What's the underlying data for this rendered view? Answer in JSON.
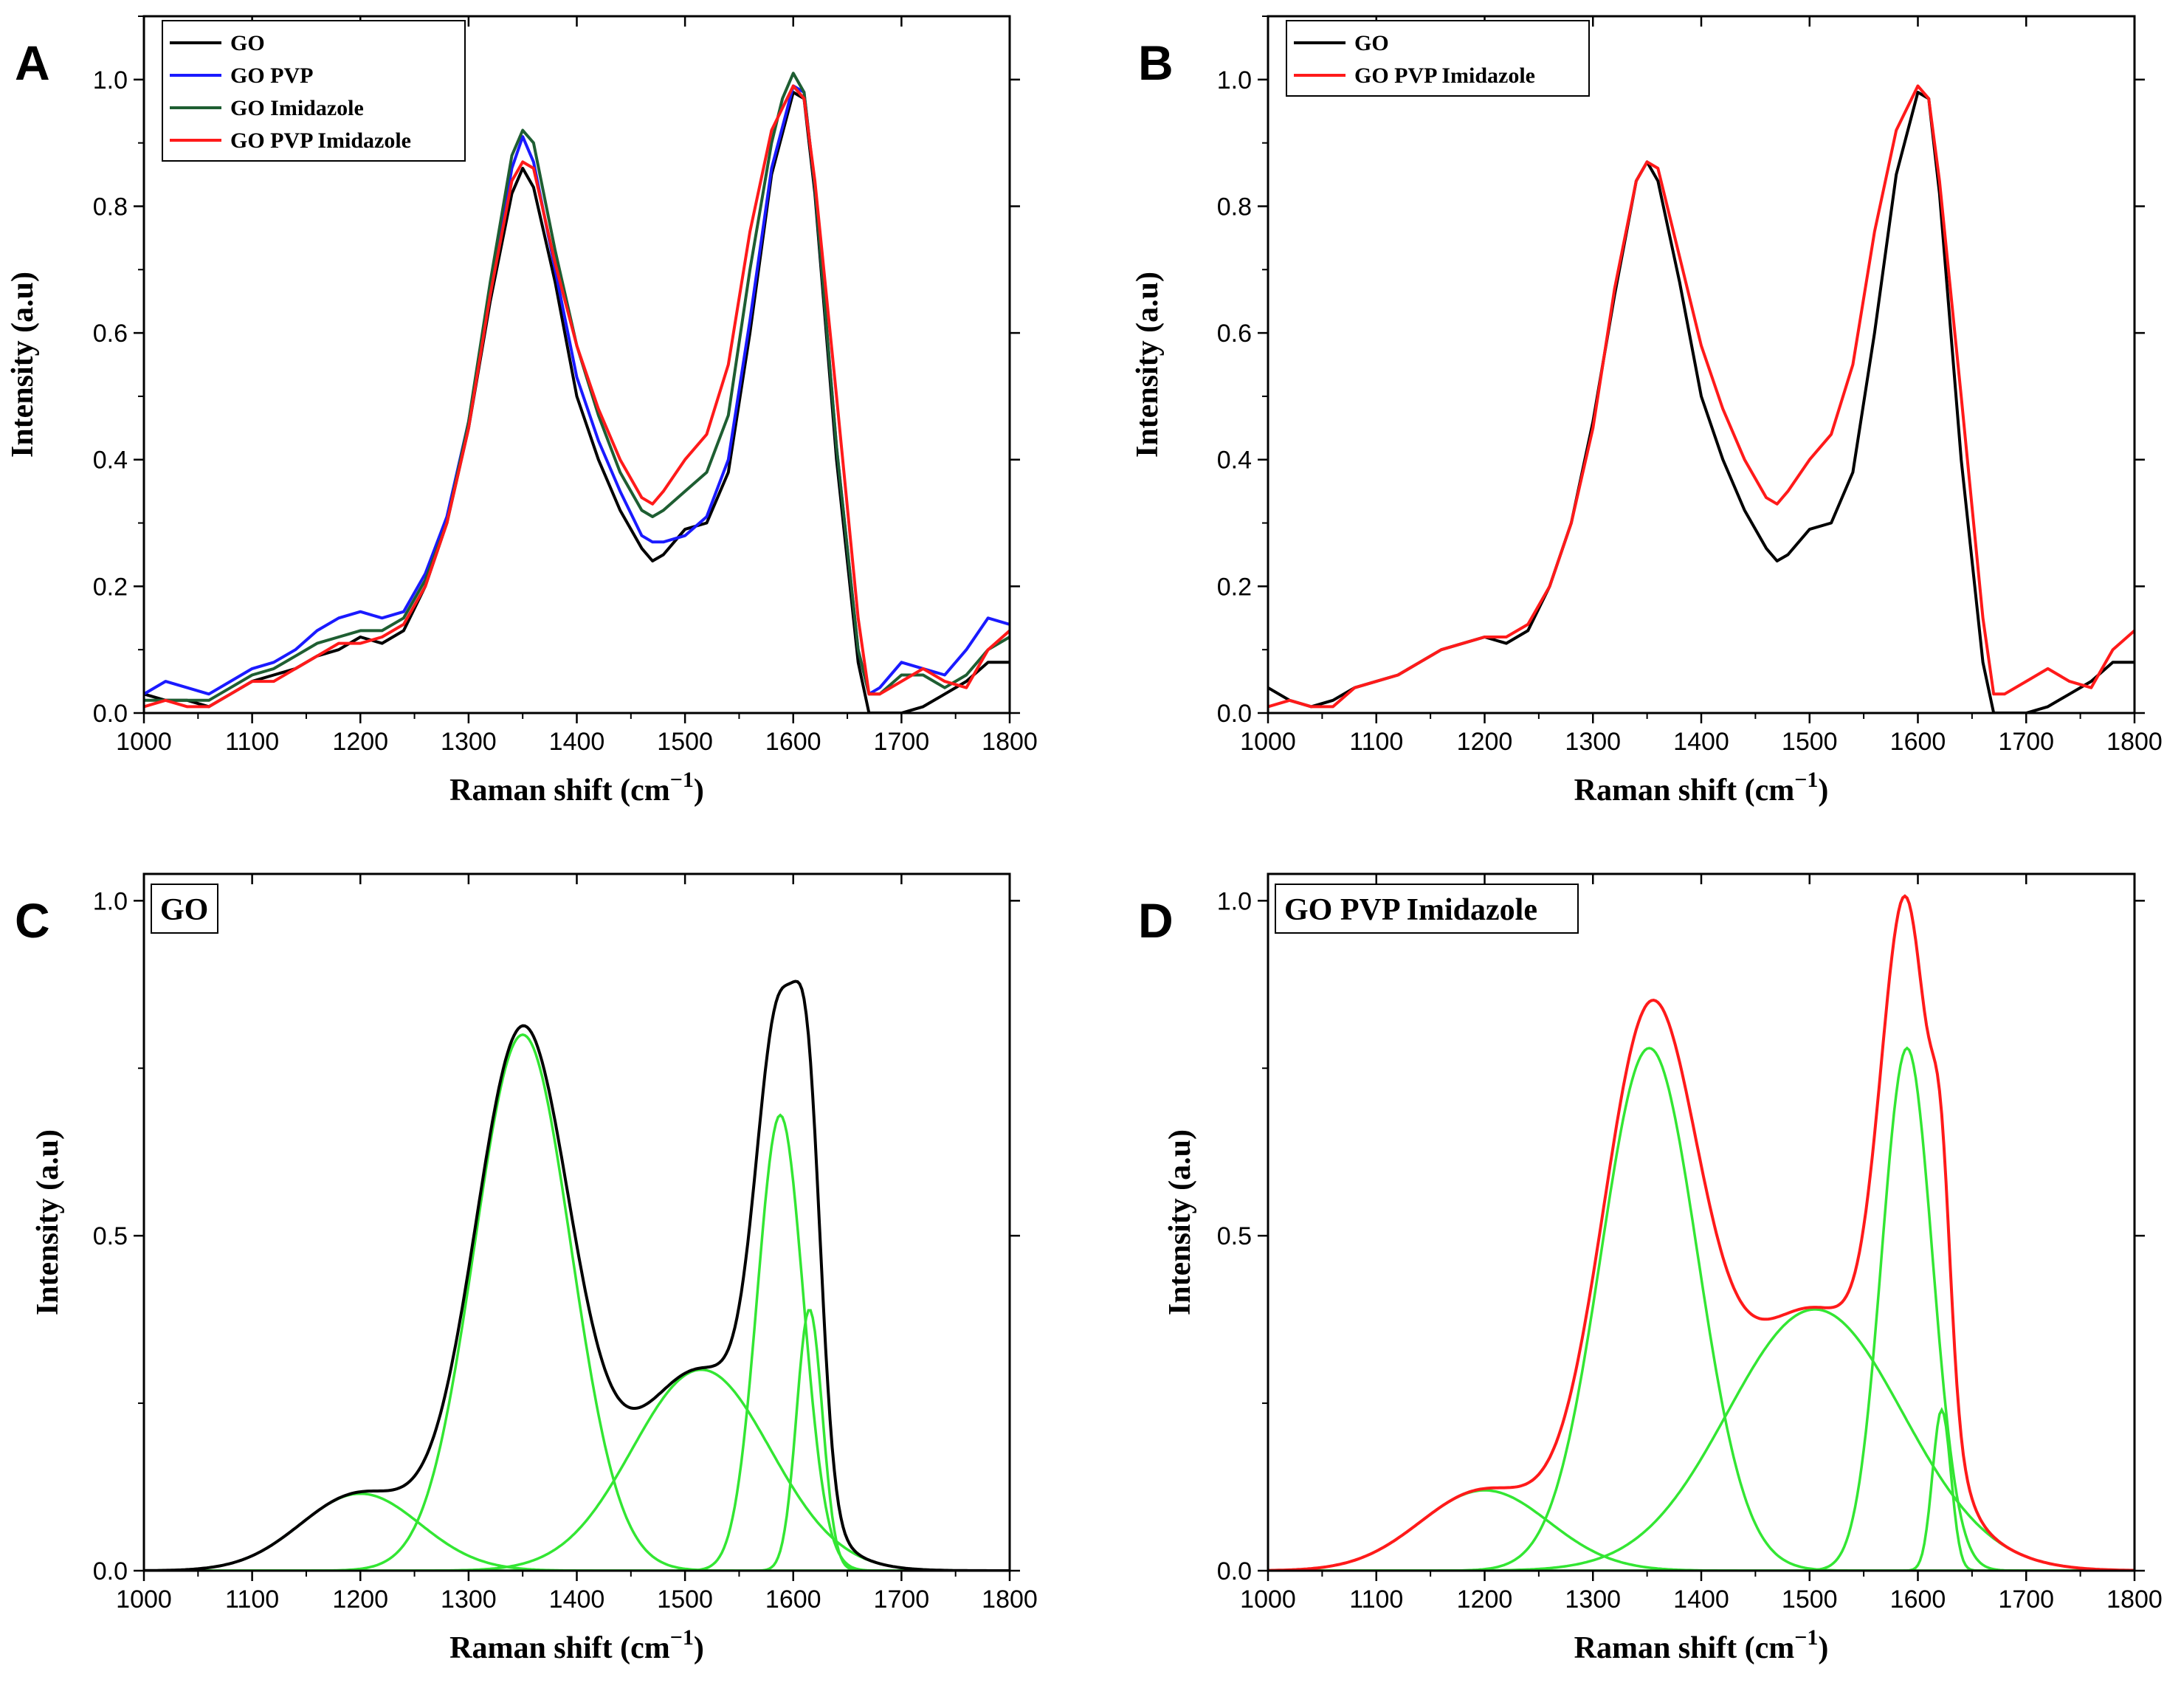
{
  "figure": {
    "colors": {
      "GO": "#000000",
      "GO PVP": "#1a1aff",
      "GO Imidazole": "#1e5e32",
      "GO PVP Imidazole": "#ff1a1a",
      "fit": "#33e633"
    }
  },
  "chart_data": [
    {
      "panel": "A",
      "type": "line",
      "xlabel": "Raman shift (cm",
      "xlabel_sup": "−1",
      "xlabel_close": ")",
      "ylabel": "Intensity (a.u)",
      "xlim": [
        1000,
        1800
      ],
      "ylim": [
        0,
        1.1
      ],
      "xticks": [
        "1000",
        "1100",
        "1200",
        "1300",
        "1400",
        "1500",
        "1600",
        "1700",
        "1800"
      ],
      "yticks": [
        "0.0",
        "0.2",
        "0.4",
        "0.6",
        "0.8",
        "1.0"
      ],
      "legend": [
        "GO",
        "GO PVP",
        "GO Imidazole",
        "GO PVP Imidazole"
      ],
      "series": [
        {
          "name": "GO",
          "color": "#000000",
          "x": [
            1000,
            1020,
            1040,
            1060,
            1080,
            1100,
            1120,
            1140,
            1160,
            1180,
            1200,
            1220,
            1240,
            1260,
            1280,
            1300,
            1320,
            1340,
            1350,
            1360,
            1380,
            1400,
            1420,
            1440,
            1460,
            1470,
            1480,
            1500,
            1520,
            1540,
            1560,
            1580,
            1600,
            1610,
            1620,
            1640,
            1660,
            1670,
            1680,
            1700,
            1720,
            1740,
            1760,
            1780,
            1800
          ],
          "y": [
            0.03,
            0.02,
            0.02,
            0.01,
            0.03,
            0.05,
            0.06,
            0.07,
            0.09,
            0.1,
            0.12,
            0.11,
            0.13,
            0.2,
            0.3,
            0.45,
            0.65,
            0.82,
            0.86,
            0.83,
            0.68,
            0.5,
            0.4,
            0.32,
            0.26,
            0.24,
            0.25,
            0.29,
            0.3,
            0.38,
            0.6,
            0.85,
            0.98,
            0.97,
            0.82,
            0.4,
            0.08,
            0.0,
            0.0,
            0.0,
            0.01,
            0.03,
            0.05,
            0.08,
            0.08
          ]
        },
        {
          "name": "GO PVP",
          "color": "#1a1aff",
          "x": [
            1000,
            1020,
            1040,
            1060,
            1080,
            1100,
            1120,
            1140,
            1160,
            1180,
            1200,
            1220,
            1240,
            1260,
            1280,
            1300,
            1320,
            1340,
            1350,
            1360,
            1380,
            1400,
            1420,
            1440,
            1460,
            1470,
            1480,
            1500,
            1520,
            1540,
            1560,
            1580,
            1600,
            1610,
            1620,
            1640,
            1660,
            1670,
            1680,
            1700,
            1720,
            1740,
            1760,
            1780,
            1800
          ],
          "y": [
            0.03,
            0.05,
            0.04,
            0.03,
            0.05,
            0.07,
            0.08,
            0.1,
            0.13,
            0.15,
            0.16,
            0.15,
            0.16,
            0.22,
            0.31,
            0.46,
            0.66,
            0.86,
            0.91,
            0.87,
            0.7,
            0.53,
            0.43,
            0.35,
            0.28,
            0.27,
            0.27,
            0.28,
            0.31,
            0.4,
            0.62,
            0.86,
            0.99,
            0.98,
            0.83,
            0.42,
            0.1,
            0.03,
            0.04,
            0.08,
            0.07,
            0.06,
            0.1,
            0.15,
            0.14
          ]
        },
        {
          "name": "GO Imidazole",
          "color": "#1e5e32",
          "x": [
            1000,
            1020,
            1040,
            1060,
            1080,
            1100,
            1120,
            1140,
            1160,
            1180,
            1200,
            1220,
            1240,
            1260,
            1280,
            1300,
            1320,
            1340,
            1350,
            1360,
            1380,
            1400,
            1420,
            1440,
            1460,
            1470,
            1480,
            1500,
            1520,
            1540,
            1560,
            1580,
            1590,
            1600,
            1610,
            1620,
            1640,
            1660,
            1670,
            1680,
            1700,
            1720,
            1740,
            1760,
            1780,
            1800
          ],
          "y": [
            0.02,
            0.02,
            0.02,
            0.02,
            0.04,
            0.06,
            0.07,
            0.09,
            0.11,
            0.12,
            0.13,
            0.13,
            0.15,
            0.21,
            0.3,
            0.46,
            0.68,
            0.88,
            0.92,
            0.9,
            0.73,
            0.58,
            0.47,
            0.38,
            0.32,
            0.31,
            0.32,
            0.35,
            0.38,
            0.47,
            0.7,
            0.9,
            0.97,
            1.01,
            0.98,
            0.83,
            0.42,
            0.1,
            0.03,
            0.03,
            0.06,
            0.06,
            0.04,
            0.06,
            0.1,
            0.12
          ]
        },
        {
          "name": "GO PVP Imidazole",
          "color": "#ff1a1a",
          "x": [
            1000,
            1020,
            1040,
            1060,
            1080,
            1100,
            1120,
            1140,
            1160,
            1180,
            1200,
            1220,
            1240,
            1260,
            1280,
            1300,
            1320,
            1340,
            1350,
            1360,
            1380,
            1400,
            1420,
            1440,
            1460,
            1470,
            1480,
            1500,
            1520,
            1540,
            1560,
            1580,
            1600,
            1610,
            1620,
            1640,
            1660,
            1670,
            1680,
            1700,
            1720,
            1740,
            1760,
            1780,
            1800
          ],
          "y": [
            0.01,
            0.02,
            0.01,
            0.01,
            0.03,
            0.05,
            0.05,
            0.07,
            0.09,
            0.11,
            0.11,
            0.12,
            0.14,
            0.2,
            0.3,
            0.45,
            0.66,
            0.84,
            0.87,
            0.86,
            0.71,
            0.58,
            0.48,
            0.4,
            0.34,
            0.33,
            0.35,
            0.4,
            0.44,
            0.55,
            0.76,
            0.92,
            0.99,
            0.97,
            0.84,
            0.5,
            0.15,
            0.03,
            0.03,
            0.05,
            0.07,
            0.05,
            0.04,
            0.1,
            0.13
          ]
        }
      ]
    },
    {
      "panel": "B",
      "type": "line",
      "xlabel": "Raman shift (cm",
      "xlabel_sup": "−1",
      "xlabel_close": ")",
      "ylabel": "Intensity (a.u)",
      "xlim": [
        1000,
        1800
      ],
      "ylim": [
        0,
        1.1
      ],
      "xticks": [
        "1000",
        "1100",
        "1200",
        "1300",
        "1400",
        "1500",
        "1600",
        "1700",
        "1800"
      ],
      "yticks": [
        "0.0",
        "0.2",
        "0.4",
        "0.6",
        "0.8",
        "1.0"
      ],
      "legend": [
        "GO",
        "GO PVP Imidazole"
      ],
      "series": [
        {
          "name": "GO",
          "color": "#000000",
          "x": [
            1000,
            1020,
            1040,
            1060,
            1080,
            1100,
            1120,
            1140,
            1160,
            1180,
            1200,
            1220,
            1240,
            1260,
            1280,
            1300,
            1320,
            1340,
            1350,
            1360,
            1380,
            1400,
            1420,
            1440,
            1460,
            1470,
            1480,
            1500,
            1520,
            1540,
            1560,
            1580,
            1600,
            1610,
            1620,
            1640,
            1660,
            1670,
            1680,
            1700,
            1720,
            1740,
            1760,
            1780,
            1800
          ],
          "y": [
            0.04,
            0.02,
            0.01,
            0.02,
            0.04,
            0.05,
            0.06,
            0.08,
            0.1,
            0.11,
            0.12,
            0.11,
            0.13,
            0.2,
            0.3,
            0.46,
            0.66,
            0.84,
            0.87,
            0.84,
            0.68,
            0.5,
            0.4,
            0.32,
            0.26,
            0.24,
            0.25,
            0.29,
            0.3,
            0.38,
            0.6,
            0.85,
            0.98,
            0.97,
            0.82,
            0.4,
            0.08,
            0.0,
            0.0,
            0.0,
            0.01,
            0.03,
            0.05,
            0.08,
            0.08
          ]
        },
        {
          "name": "GO PVP Imidazole",
          "color": "#ff1a1a",
          "x": [
            1000,
            1020,
            1040,
            1060,
            1080,
            1100,
            1120,
            1140,
            1160,
            1180,
            1200,
            1220,
            1240,
            1260,
            1280,
            1300,
            1320,
            1340,
            1350,
            1360,
            1380,
            1400,
            1420,
            1440,
            1460,
            1470,
            1480,
            1500,
            1520,
            1540,
            1560,
            1580,
            1600,
            1610,
            1620,
            1640,
            1660,
            1670,
            1680,
            1700,
            1720,
            1740,
            1760,
            1780,
            1800
          ],
          "y": [
            0.01,
            0.02,
            0.01,
            0.01,
            0.04,
            0.05,
            0.06,
            0.08,
            0.1,
            0.11,
            0.12,
            0.12,
            0.14,
            0.2,
            0.3,
            0.45,
            0.67,
            0.84,
            0.87,
            0.86,
            0.72,
            0.58,
            0.48,
            0.4,
            0.34,
            0.33,
            0.35,
            0.4,
            0.44,
            0.55,
            0.76,
            0.92,
            0.99,
            0.97,
            0.84,
            0.5,
            0.15,
            0.03,
            0.03,
            0.05,
            0.07,
            0.05,
            0.04,
            0.1,
            0.13
          ]
        }
      ]
    },
    {
      "panel": "C",
      "type": "line",
      "label": "GO",
      "xlabel": "Raman shift (cm",
      "xlabel_sup": "−1",
      "xlabel_close": ")",
      "ylabel": "Intensity (a.u)",
      "xlim": [
        1000,
        1800
      ],
      "ylim": [
        0,
        1.04
      ],
      "xticks": [
        "1000",
        "1100",
        "1200",
        "1300",
        "1400",
        "1500",
        "1600",
        "1700",
        "1800"
      ],
      "yticks": [
        "0.0",
        "0.5",
        "1.0"
      ],
      "envelope_color": "#000000",
      "fit_color": "#33e633",
      "peaks": [
        {
          "center": 1200,
          "height": 0.115,
          "fwhm": 130
        },
        {
          "center": 1350,
          "height": 0.8,
          "fwhm": 105
        },
        {
          "center": 1515,
          "height": 0.3,
          "fwhm": 150
        },
        {
          "center": 1588,
          "height": 0.68,
          "fwhm": 50
        },
        {
          "center": 1615,
          "height": 0.39,
          "fwhm": 28
        }
      ]
    },
    {
      "panel": "D",
      "type": "line",
      "label": "GO PVP Imidazole",
      "xlabel": "Raman shift (cm",
      "xlabel_sup": "−1",
      "xlabel_close": ")",
      "ylabel": "Intensity (a.u)",
      "xlim": [
        1000,
        1800
      ],
      "ylim": [
        0,
        1.04
      ],
      "xticks": [
        "1000",
        "1100",
        "1200",
        "1300",
        "1400",
        "1500",
        "1600",
        "1700",
        "1800"
      ],
      "yticks": [
        "0.0",
        "0.5",
        "1.0"
      ],
      "envelope_color": "#ff1a1a",
      "fit_color": "#33e633",
      "peaks": [
        {
          "center": 1200,
          "height": 0.12,
          "fwhm": 140
        },
        {
          "center": 1352,
          "height": 0.78,
          "fwhm": 105
        },
        {
          "center": 1505,
          "height": 0.39,
          "fwhm": 190
        },
        {
          "center": 1590,
          "height": 0.78,
          "fwhm": 55
        },
        {
          "center": 1622,
          "height": 0.24,
          "fwhm": 20
        }
      ]
    }
  ]
}
